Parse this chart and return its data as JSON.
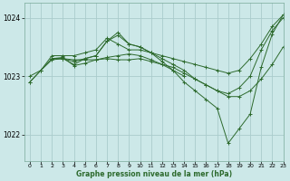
{
  "title": "Graphe pression niveau de la mer (hPa)",
  "bg_color": "#cce8e8",
  "grid_color": "#aacccc",
  "line_color": "#2d6a2d",
  "xlim": [
    -0.5,
    23
  ],
  "ylim": [
    1021.55,
    1024.25
  ],
  "yticks": [
    1022,
    1023,
    1024
  ],
  "xticks": [
    0,
    1,
    2,
    3,
    4,
    5,
    6,
    7,
    8,
    9,
    10,
    11,
    12,
    13,
    14,
    15,
    16,
    17,
    18,
    19,
    20,
    21,
    22,
    23
  ],
  "series": [
    {
      "x": [
        0,
        1,
        2,
        3,
        4,
        5,
        6,
        7,
        8,
        9,
        10,
        11,
        12,
        13,
        14,
        15,
        16,
        17,
        18,
        19,
        20,
        21,
        22,
        23
      ],
      "y": [
        1023.0,
        1023.1,
        1023.35,
        1023.35,
        1023.35,
        1023.4,
        1023.45,
        1023.65,
        1023.55,
        1023.45,
        1023.45,
        1023.4,
        1023.35,
        1023.3,
        1023.25,
        1023.2,
        1023.15,
        1023.1,
        1023.05,
        1023.1,
        1023.3,
        1023.55,
        1023.85,
        1024.05
      ]
    },
    {
      "x": [
        0,
        1,
        2,
        3,
        4,
        5,
        6,
        7,
        8,
        9,
        10,
        11,
        12,
        13,
        14,
        15,
        16,
        17,
        18,
        19,
        20,
        21,
        22,
        23
      ],
      "y": [
        1022.9,
        1023.1,
        1023.3,
        1023.3,
        1023.25,
        1023.3,
        1023.35,
        1023.6,
        1023.7,
        1023.55,
        1023.5,
        1023.4,
        1023.3,
        1023.2,
        1023.1,
        1022.95,
        1022.85,
        1022.75,
        1022.7,
        1022.8,
        1023.0,
        1023.45,
        1023.78,
        1024.0
      ]
    },
    {
      "x": [
        0,
        1,
        2,
        3,
        4,
        5,
        6,
        7,
        8,
        9,
        10,
        11,
        12,
        13,
        14,
        15,
        16,
        17,
        18,
        19,
        20,
        21,
        22,
        23
      ],
      "y": [
        1022.9,
        1023.1,
        1023.28,
        1023.3,
        1023.28,
        1023.28,
        1023.28,
        1023.3,
        1023.28,
        1023.28,
        1023.3,
        1023.25,
        1023.2,
        1023.15,
        1023.05,
        1022.95,
        1022.85,
        1022.75,
        1022.65,
        1022.65,
        1022.75,
        1022.95,
        1023.2,
        1023.5
      ]
    },
    {
      "x": [
        2,
        3,
        4,
        5,
        6,
        7,
        8,
        9,
        10,
        11,
        12,
        13,
        14,
        15,
        16,
        17,
        18,
        19,
        20,
        21,
        22,
        23
      ],
      "y": [
        1023.3,
        1023.3,
        1023.2,
        1023.3,
        1023.35,
        1023.6,
        1023.75,
        1023.55,
        1023.5,
        1023.4,
        1023.25,
        1023.1,
        1022.9,
        1022.75,
        1022.6,
        1022.45,
        1021.85,
        1022.1,
        1022.35,
        1023.15,
        1023.72,
        1024.05
      ]
    },
    {
      "x": [
        2,
        3,
        4,
        5,
        6,
        7,
        8,
        9,
        10,
        11,
        12,
        13,
        14
      ],
      "y": [
        1023.3,
        1023.32,
        1023.18,
        1023.22,
        1023.28,
        1023.32,
        1023.35,
        1023.38,
        1023.35,
        1023.28,
        1023.2,
        1023.1,
        1023.0
      ]
    }
  ]
}
